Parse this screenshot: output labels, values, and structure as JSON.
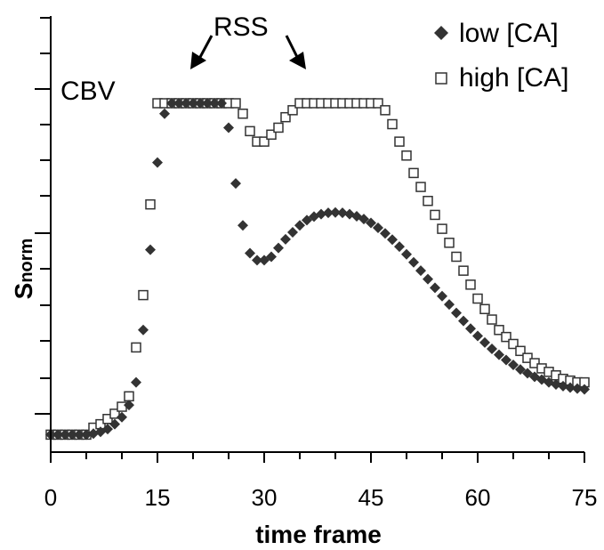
{
  "chart_data": {
    "type": "scatter",
    "title": "",
    "xlabel": "time frame",
    "ylabel_main": "S",
    "ylabel_sub": "norm",
    "xlim": [
      0,
      75
    ],
    "ylim": [
      -0.05,
      1.2
    ],
    "xticks": [
      0,
      15,
      30,
      45,
      60,
      75
    ],
    "xtick_labels": [
      "0",
      "15",
      "30",
      "45",
      "60",
      "75"
    ],
    "legend_position": "top-right",
    "annotations": [
      {
        "text": "RSS"
      },
      {
        "text": "CBV"
      }
    ],
    "series": [
      {
        "name": "low [CA]",
        "marker": "filled-diamond",
        "color": "#333333",
        "x": [
          0,
          1,
          2,
          3,
          4,
          5,
          6,
          7,
          8,
          9,
          10,
          11,
          12,
          13,
          14,
          15,
          16,
          17,
          18,
          19,
          20,
          21,
          22,
          23,
          24,
          25,
          26,
          27,
          28,
          29,
          30,
          31,
          32,
          33,
          34,
          35,
          36,
          37,
          38,
          39,
          40,
          41,
          42,
          43,
          44,
          45,
          46,
          47,
          48,
          49,
          50,
          51,
          52,
          53,
          54,
          55,
          56,
          57,
          58,
          59,
          60,
          61,
          62,
          63,
          64,
          65,
          66,
          67,
          68,
          69,
          70,
          71,
          72,
          73,
          74,
          75
        ],
        "y": [
          0.0,
          0.0,
          0.0,
          0.0,
          0.0,
          0.0,
          0.003,
          0.008,
          0.016,
          0.03,
          0.05,
          0.085,
          0.15,
          0.3,
          0.53,
          0.78,
          0.92,
          0.95,
          0.95,
          0.95,
          0.95,
          0.95,
          0.95,
          0.95,
          0.95,
          0.88,
          0.72,
          0.6,
          0.52,
          0.5,
          0.5,
          0.51,
          0.535,
          0.56,
          0.58,
          0.6,
          0.615,
          0.625,
          0.632,
          0.636,
          0.637,
          0.636,
          0.632,
          0.626,
          0.618,
          0.607,
          0.593,
          0.577,
          0.559,
          0.539,
          0.517,
          0.494,
          0.47,
          0.446,
          0.421,
          0.397,
          0.373,
          0.349,
          0.326,
          0.304,
          0.283,
          0.264,
          0.246,
          0.229,
          0.214,
          0.2,
          0.187,
          0.176,
          0.166,
          0.158,
          0.15,
          0.144,
          0.139,
          0.135,
          0.132,
          0.13
        ]
      },
      {
        "name": "high [CA]",
        "marker": "open-square",
        "color": "#333333",
        "x": [
          0,
          1,
          2,
          3,
          4,
          5,
          6,
          7,
          8,
          9,
          10,
          11,
          12,
          13,
          14,
          15,
          16,
          17,
          18,
          19,
          20,
          21,
          22,
          23,
          24,
          25,
          26,
          27,
          28,
          29,
          30,
          31,
          32,
          33,
          34,
          35,
          36,
          37,
          38,
          39,
          40,
          41,
          42,
          43,
          44,
          45,
          46,
          47,
          48,
          49,
          50,
          51,
          52,
          53,
          54,
          55,
          56,
          57,
          58,
          59,
          60,
          61,
          62,
          63,
          64,
          65,
          66,
          67,
          68,
          69,
          70,
          71,
          72,
          73,
          74,
          75
        ],
        "y": [
          0.0,
          0.0,
          0.0,
          0.0,
          0.0,
          0.0,
          0.02,
          0.03,
          0.045,
          0.06,
          0.08,
          0.11,
          0.25,
          0.4,
          0.66,
          0.95,
          0.95,
          0.95,
          0.95,
          0.95,
          0.95,
          0.95,
          0.95,
          0.95,
          0.95,
          0.95,
          0.95,
          0.92,
          0.87,
          0.84,
          0.84,
          0.86,
          0.88,
          0.91,
          0.93,
          0.95,
          0.95,
          0.95,
          0.95,
          0.95,
          0.95,
          0.95,
          0.95,
          0.95,
          0.95,
          0.95,
          0.95,
          0.93,
          0.89,
          0.84,
          0.8,
          0.75,
          0.71,
          0.67,
          0.63,
          0.59,
          0.55,
          0.51,
          0.47,
          0.43,
          0.39,
          0.36,
          0.33,
          0.3,
          0.28,
          0.26,
          0.24,
          0.22,
          0.205,
          0.19,
          0.18,
          0.17,
          0.16,
          0.155,
          0.15,
          0.15
        ]
      }
    ]
  }
}
